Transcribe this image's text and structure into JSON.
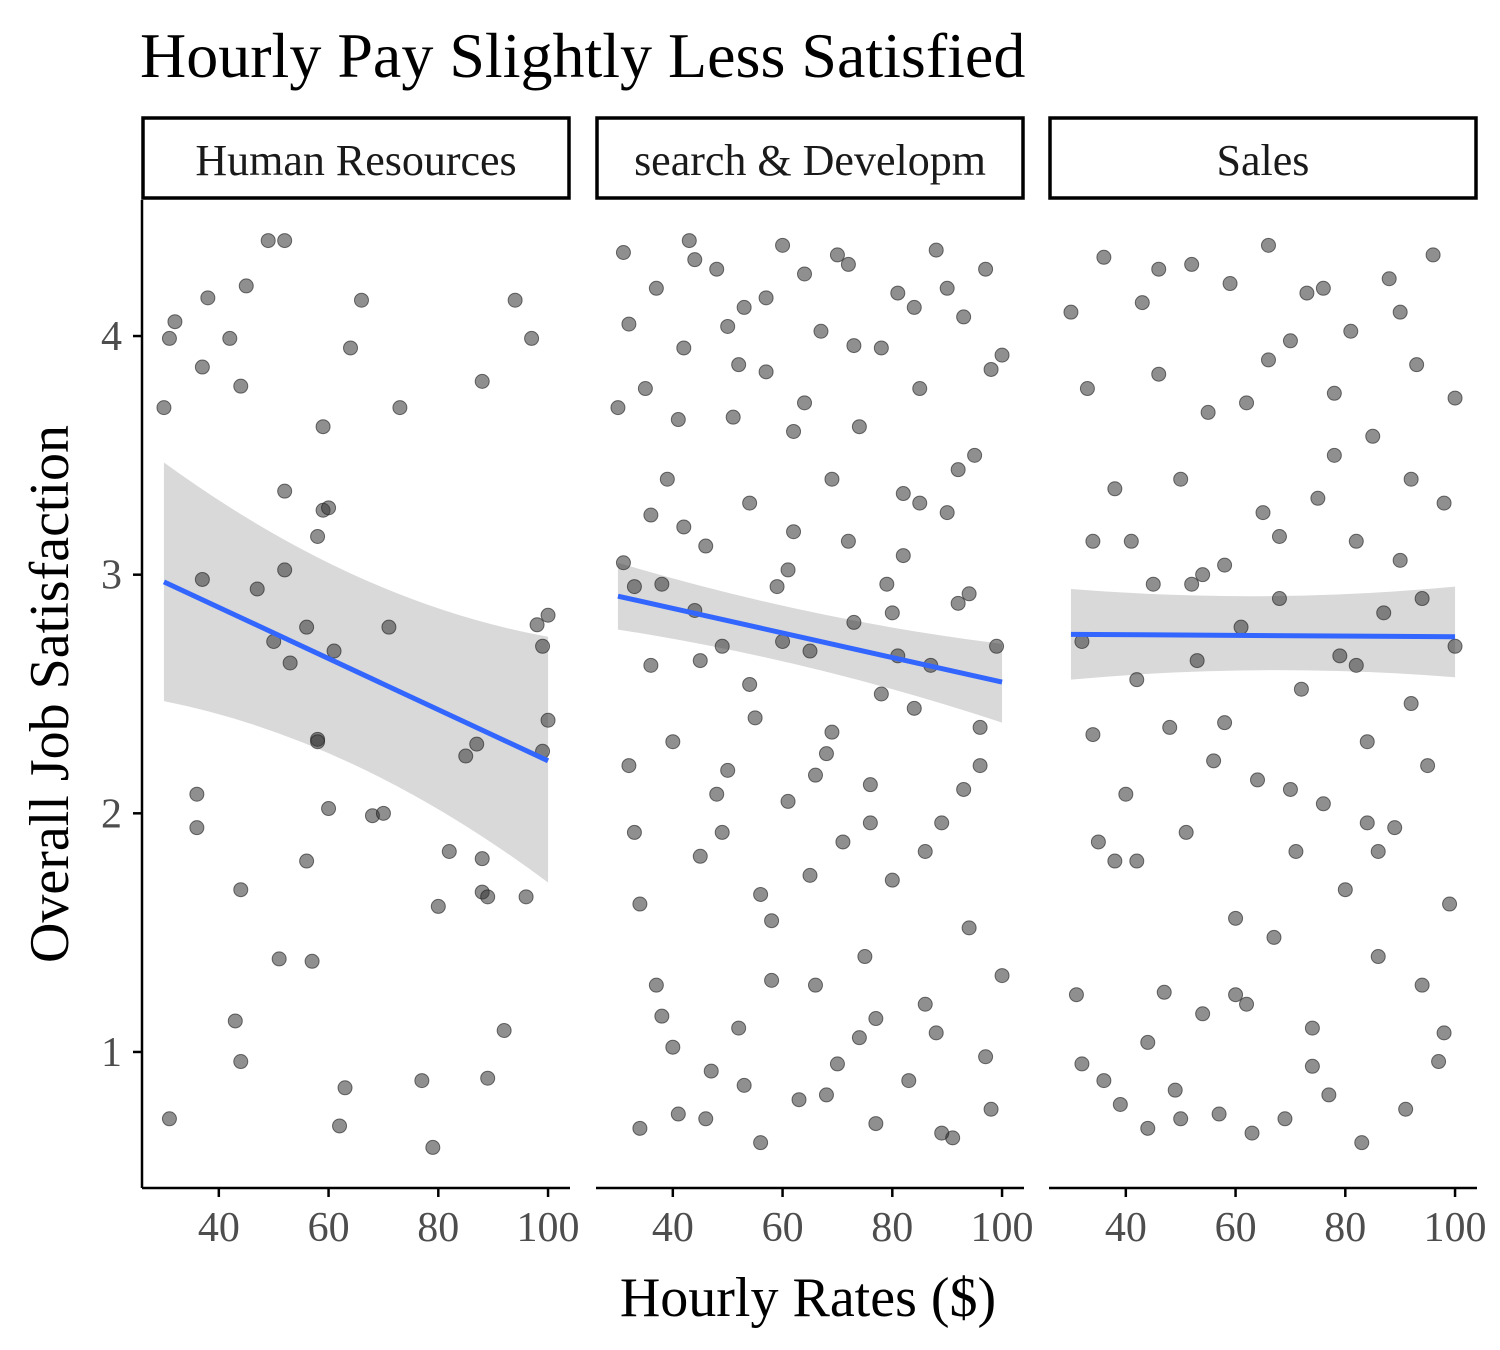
{
  "chart_data": {
    "type": "scatter",
    "title": "Hourly Pay Slightly Less Satisfied",
    "xlabel": "Hourly Rates ($)",
    "ylabel": "Overall Job Satisfaction",
    "x_ticks": [
      40,
      60,
      80,
      100
    ],
    "y_ticks": [
      1,
      2,
      3,
      4
    ],
    "x_tick_labels": [
      "40",
      "60",
      "80",
      "100"
    ],
    "y_tick_labels": [
      "1",
      "2",
      "3",
      "4"
    ],
    "xlim": [
      26,
      104
    ],
    "ylim": [
      0.43,
      4.57
    ],
    "grid": false,
    "legend": "none",
    "colors": {
      "point": "#333333",
      "fit_line": "#3366ff",
      "ribbon": "#d9d9d9",
      "axis": "#000000",
      "tick_label": "#4d4d4d"
    },
    "facets": [
      {
        "label": "Human Resources",
        "fit": {
          "x": [
            30,
            100
          ],
          "y": [
            2.97,
            2.22
          ],
          "ci_lower": [
            2.47,
            1.71
          ],
          "ci_upper": [
            3.47,
            2.74
          ]
        },
        "points": [
          [
            31,
            0.72
          ],
          [
            31,
            3.99
          ],
          [
            32,
            4.06
          ],
          [
            30,
            3.7
          ],
          [
            36,
            2.08
          ],
          [
            36,
            1.94
          ],
          [
            37,
            2.98
          ],
          [
            37,
            3.87
          ],
          [
            38,
            4.16
          ],
          [
            42,
            3.99
          ],
          [
            43,
            1.13
          ],
          [
            44,
            3.79
          ],
          [
            44,
            1.68
          ],
          [
            44,
            0.96
          ],
          [
            45,
            4.21
          ],
          [
            47,
            2.94
          ],
          [
            49,
            4.4
          ],
          [
            50,
            2.72
          ],
          [
            51,
            1.39
          ],
          [
            52,
            4.4
          ],
          [
            52,
            3.35
          ],
          [
            52,
            3.02
          ],
          [
            53,
            2.63
          ],
          [
            56,
            2.78
          ],
          [
            56,
            1.8
          ],
          [
            57,
            1.38
          ],
          [
            58,
            2.31
          ],
          [
            58,
            2.3
          ],
          [
            58,
            3.16
          ],
          [
            59,
            3.27
          ],
          [
            59,
            3.62
          ],
          [
            60,
            3.28
          ],
          [
            60,
            2.02
          ],
          [
            61,
            2.68
          ],
          [
            62,
            0.69
          ],
          [
            63,
            0.85
          ],
          [
            64,
            3.95
          ],
          [
            66,
            4.15
          ],
          [
            68,
            1.99
          ],
          [
            70,
            2.0
          ],
          [
            71,
            2.78
          ],
          [
            73,
            3.7
          ],
          [
            77,
            0.88
          ],
          [
            79,
            0.6
          ],
          [
            80,
            1.61
          ],
          [
            82,
            1.84
          ],
          [
            85,
            2.24
          ],
          [
            87,
            2.29
          ],
          [
            88,
            3.81
          ],
          [
            88,
            1.67
          ],
          [
            88,
            1.81
          ],
          [
            89,
            1.65
          ],
          [
            89,
            0.89
          ],
          [
            92,
            1.09
          ],
          [
            94,
            4.15
          ],
          [
            96,
            1.65
          ],
          [
            97,
            3.99
          ],
          [
            98,
            2.79
          ],
          [
            99,
            2.7
          ],
          [
            99,
            2.26
          ],
          [
            100,
            2.83
          ],
          [
            100,
            2.39
          ]
        ]
      },
      {
        "label": "search & Developm",
        "fit": {
          "x": [
            30,
            100
          ],
          "y": [
            2.91,
            2.55
          ],
          "ci_lower": [
            2.77,
            2.38
          ],
          "ci_upper": [
            3.05,
            2.71
          ]
        },
        "points": [
          [
            30,
            3.7
          ],
          [
            31,
            4.35
          ],
          [
            31,
            3.05
          ],
          [
            32,
            4.05
          ],
          [
            33,
            1.92
          ],
          [
            34,
            0.68
          ],
          [
            35,
            3.78
          ],
          [
            36,
            2.62
          ],
          [
            37,
            4.2
          ],
          [
            38,
            1.15
          ],
          [
            39,
            3.4
          ],
          [
            40,
            2.3
          ],
          [
            41,
            0.74
          ],
          [
            42,
            3.95
          ],
          [
            43,
            4.4
          ],
          [
            44,
            2.85
          ],
          [
            45,
            1.82
          ],
          [
            46,
            3.12
          ],
          [
            47,
            0.92
          ],
          [
            48,
            4.28
          ],
          [
            49,
            2.7
          ],
          [
            50,
            2.18
          ],
          [
            51,
            3.66
          ],
          [
            52,
            1.1
          ],
          [
            53,
            4.12
          ],
          [
            54,
            3.3
          ],
          [
            55,
            2.4
          ],
          [
            56,
            0.62
          ],
          [
            57,
            3.85
          ],
          [
            58,
            1.55
          ],
          [
            59,
            2.95
          ],
          [
            60,
            4.38
          ],
          [
            61,
            2.05
          ],
          [
            62,
            3.18
          ],
          [
            63,
            0.8
          ],
          [
            64,
            3.72
          ],
          [
            65,
            2.68
          ],
          [
            66,
            1.28
          ],
          [
            67,
            4.02
          ],
          [
            68,
            2.25
          ],
          [
            69,
            3.4
          ],
          [
            70,
            0.95
          ],
          [
            71,
            1.88
          ],
          [
            72,
            4.3
          ],
          [
            73,
            2.8
          ],
          [
            74,
            3.62
          ],
          [
            75,
            1.4
          ],
          [
            76,
            2.12
          ],
          [
            77,
            0.7
          ],
          [
            78,
            3.95
          ],
          [
            79,
            2.96
          ],
          [
            80,
            1.72
          ],
          [
            81,
            4.18
          ],
          [
            82,
            3.08
          ],
          [
            83,
            0.88
          ],
          [
            84,
            2.44
          ],
          [
            85,
            3.78
          ],
          [
            86,
            1.2
          ],
          [
            87,
            2.62
          ],
          [
            88,
            4.36
          ],
          [
            89,
            1.96
          ],
          [
            90,
            3.26
          ],
          [
            91,
            0.64
          ],
          [
            92,
            2.88
          ],
          [
            93,
            4.08
          ],
          [
            94,
            1.52
          ],
          [
            95,
            3.5
          ],
          [
            96,
            2.2
          ],
          [
            97,
            0.98
          ],
          [
            98,
            3.86
          ],
          [
            99,
            2.7
          ],
          [
            100,
            1.32
          ],
          [
            32,
            2.2
          ],
          [
            36,
            3.25
          ],
          [
            40,
            1.02
          ],
          [
            44,
            4.32
          ],
          [
            48,
            2.08
          ],
          [
            52,
            3.88
          ],
          [
            56,
            1.66
          ],
          [
            60,
            2.72
          ],
          [
            64,
            4.26
          ],
          [
            68,
            0.82
          ],
          [
            72,
            3.14
          ],
          [
            76,
            1.96
          ],
          [
            80,
            2.84
          ],
          [
            84,
            4.12
          ],
          [
            88,
            1.08
          ],
          [
            92,
            3.44
          ],
          [
            96,
            2.36
          ],
          [
            100,
            3.92
          ],
          [
            34,
            1.62
          ],
          [
            38,
            2.96
          ],
          [
            42,
            3.2
          ],
          [
            46,
            0.72
          ],
          [
            50,
            4.04
          ],
          [
            54,
            2.54
          ],
          [
            58,
            1.3
          ],
          [
            62,
            3.6
          ],
          [
            66,
            2.16
          ],
          [
            70,
            4.34
          ],
          [
            74,
            1.06
          ],
          [
            78,
            2.5
          ],
          [
            82,
            3.34
          ],
          [
            86,
            1.84
          ],
          [
            90,
            4.2
          ],
          [
            94,
            2.92
          ],
          [
            98,
            0.76
          ],
          [
            33,
            2.95
          ],
          [
            37,
            1.28
          ],
          [
            41,
            3.65
          ],
          [
            45,
            2.64
          ],
          [
            49,
            1.92
          ],
          [
            53,
            0.86
          ],
          [
            57,
            4.16
          ],
          [
            61,
            3.02
          ],
          [
            65,
            1.74
          ],
          [
            69,
            2.34
          ],
          [
            73,
            3.96
          ],
          [
            77,
            1.14
          ],
          [
            81,
            2.66
          ],
          [
            85,
            3.3
          ],
          [
            89,
            0.66
          ],
          [
            93,
            2.1
          ],
          [
            97,
            4.28
          ]
        ]
      },
      {
        "label": "Sales",
        "fit": {
          "x": [
            30,
            100
          ],
          "y": [
            2.75,
            2.74
          ],
          "ci_lower": [
            2.56,
            2.57
          ],
          "ci_upper": [
            2.94,
            2.95
          ]
        },
        "points": [
          [
            30,
            4.1
          ],
          [
            31,
            1.24
          ],
          [
            32,
            0.95
          ],
          [
            32,
            2.72
          ],
          [
            33,
            3.78
          ],
          [
            34,
            2.33
          ],
          [
            35,
            1.88
          ],
          [
            36,
            4.33
          ],
          [
            38,
            3.36
          ],
          [
            39,
            0.78
          ],
          [
            40,
            2.08
          ],
          [
            41,
            3.14
          ],
          [
            42,
            1.8
          ],
          [
            43,
            4.14
          ],
          [
            44,
            0.68
          ],
          [
            45,
            2.96
          ],
          [
            46,
            3.84
          ],
          [
            47,
            1.25
          ],
          [
            48,
            2.36
          ],
          [
            49,
            0.84
          ],
          [
            50,
            3.4
          ],
          [
            51,
            1.92
          ],
          [
            52,
            4.3
          ],
          [
            53,
            2.64
          ],
          [
            54,
            1.16
          ],
          [
            55,
            3.68
          ],
          [
            56,
            2.22
          ],
          [
            57,
            0.74
          ],
          [
            58,
            3.04
          ],
          [
            59,
            4.22
          ],
          [
            60,
            1.56
          ],
          [
            61,
            2.78
          ],
          [
            62,
            3.72
          ],
          [
            63,
            0.66
          ],
          [
            64,
            2.14
          ],
          [
            65,
            3.26
          ],
          [
            66,
            4.38
          ],
          [
            67,
            1.48
          ],
          [
            68,
            2.9
          ],
          [
            69,
            0.72
          ],
          [
            70,
            3.98
          ],
          [
            71,
            1.84
          ],
          [
            72,
            2.52
          ],
          [
            73,
            4.18
          ],
          [
            74,
            1.1
          ],
          [
            75,
            3.32
          ],
          [
            76,
            2.04
          ],
          [
            77,
            0.82
          ],
          [
            78,
            3.76
          ],
          [
            79,
            2.66
          ],
          [
            80,
            1.68
          ],
          [
            81,
            4.02
          ],
          [
            82,
            3.14
          ],
          [
            83,
            0.62
          ],
          [
            84,
            2.3
          ],
          [
            85,
            3.58
          ],
          [
            86,
            1.4
          ],
          [
            87,
            2.84
          ],
          [
            88,
            4.24
          ],
          [
            89,
            1.94
          ],
          [
            90,
            3.06
          ],
          [
            91,
            0.76
          ],
          [
            92,
            2.46
          ],
          [
            93,
            3.88
          ],
          [
            94,
            1.28
          ],
          [
            95,
            2.2
          ],
          [
            96,
            4.34
          ],
          [
            97,
            0.96
          ],
          [
            98,
            3.3
          ],
          [
            99,
            1.62
          ],
          [
            100,
            3.74
          ],
          [
            34,
            3.14
          ],
          [
            38,
            1.8
          ],
          [
            42,
            2.56
          ],
          [
            46,
            4.28
          ],
          [
            50,
            0.72
          ],
          [
            54,
            3.0
          ],
          [
            58,
            2.38
          ],
          [
            62,
            1.2
          ],
          [
            66,
            3.9
          ],
          [
            70,
            2.1
          ],
          [
            74,
            0.94
          ],
          [
            78,
            3.5
          ],
          [
            82,
            2.62
          ],
          [
            86,
            1.84
          ],
          [
            90,
            4.1
          ],
          [
            94,
            2.9
          ],
          [
            98,
            1.08
          ],
          [
            36,
            0.88
          ],
          [
            44,
            1.04
          ],
          [
            52,
            2.96
          ],
          [
            60,
            1.24
          ],
          [
            68,
            3.16
          ],
          [
            76,
            4.2
          ],
          [
            84,
            1.96
          ],
          [
            92,
            3.4
          ],
          [
            100,
            2.7
          ]
        ]
      }
    ]
  }
}
